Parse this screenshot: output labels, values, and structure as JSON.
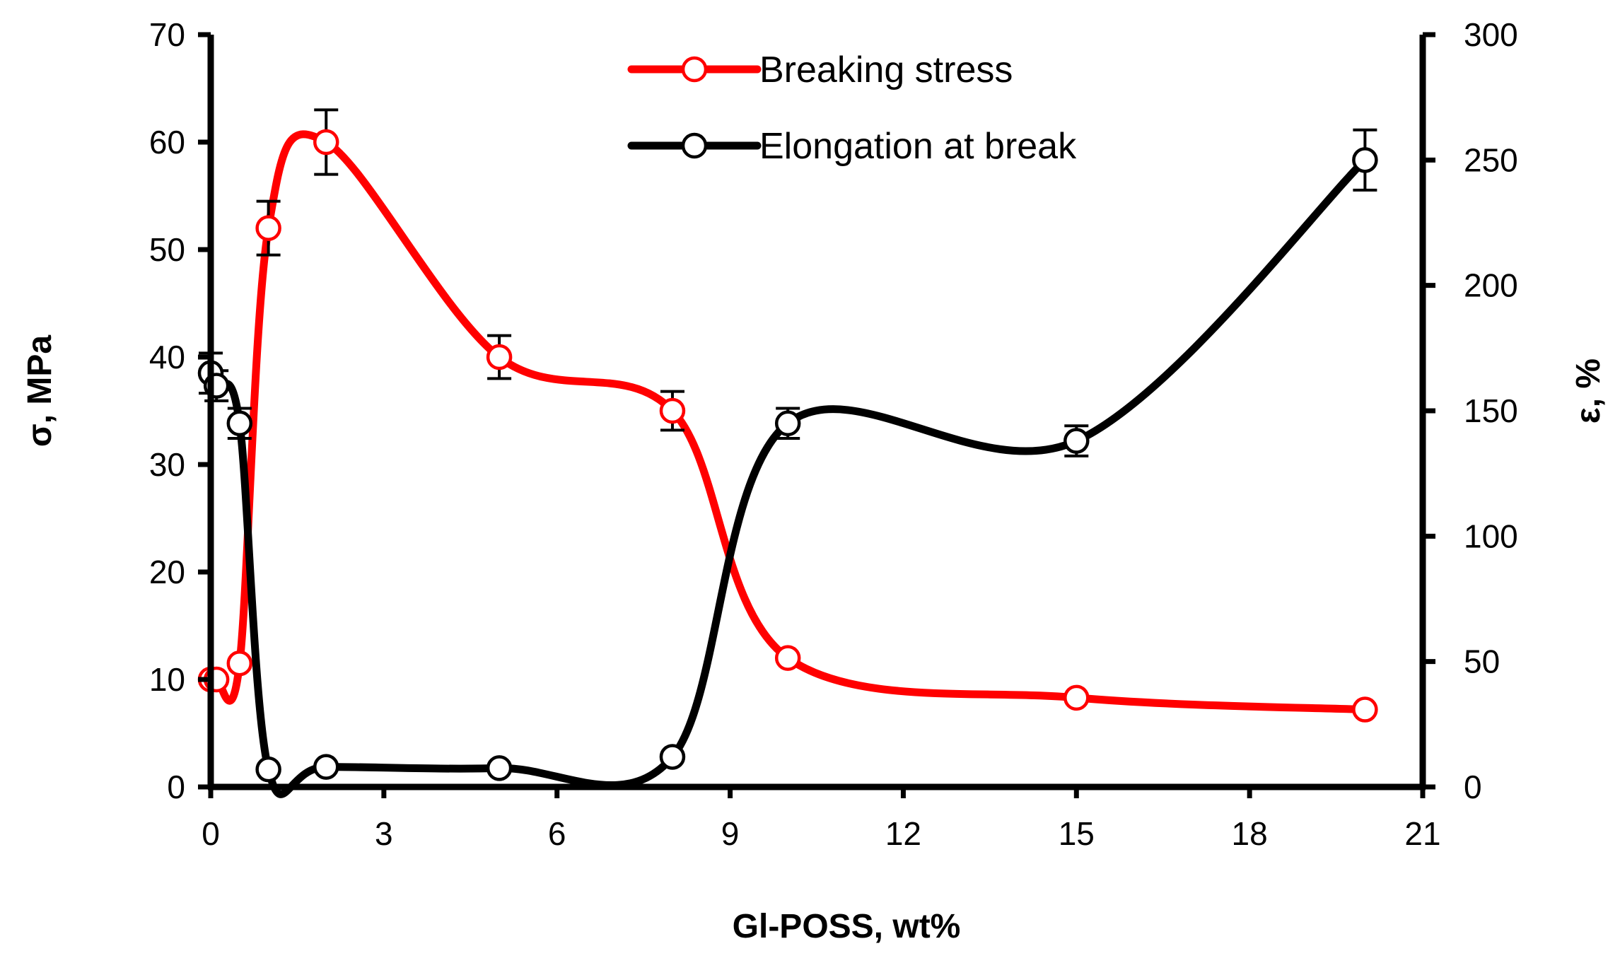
{
  "chart_data": {
    "type": "line",
    "title": "",
    "xlabel": "Gl-POSS, wt%",
    "ylabel": "σ, MPa",
    "y2label": "ε, %",
    "xlim": [
      0,
      21
    ],
    "ylim": [
      0,
      70
    ],
    "y2lim": [
      0,
      300
    ],
    "xticks": [
      "0",
      "3",
      "6",
      "9",
      "12",
      "15",
      "18",
      "21"
    ],
    "yticks": [
      "0",
      "10",
      "20",
      "30",
      "40",
      "50",
      "60",
      "70"
    ],
    "y2ticks": [
      "0",
      "50",
      "100",
      "150",
      "200",
      "250",
      "300"
    ],
    "grid": false,
    "legend_position": "top-center",
    "series": [
      {
        "name": "Breaking stress",
        "axis": "left",
        "color": "#ff0000",
        "x": [
          0,
          0.1,
          0.5,
          1,
          2,
          5,
          8,
          10,
          15,
          20
        ],
        "y": [
          10,
          10,
          11.5,
          52,
          60,
          40,
          35,
          12,
          8.3,
          7.2
        ],
        "yerr": [
          0,
          0,
          0,
          2.5,
          3,
          2,
          1.8,
          0,
          0,
          0
        ]
      },
      {
        "name": "Elongation at break",
        "axis": "right",
        "color": "#000000",
        "x": [
          0,
          0.1,
          0.5,
          1,
          2,
          5,
          8,
          10,
          15,
          20
        ],
        "y": [
          165,
          160,
          145,
          7,
          8,
          7.5,
          12,
          145,
          138,
          250
        ],
        "yerr": [
          8,
          6,
          6,
          0,
          0,
          0,
          0,
          6,
          6,
          12
        ]
      }
    ]
  }
}
